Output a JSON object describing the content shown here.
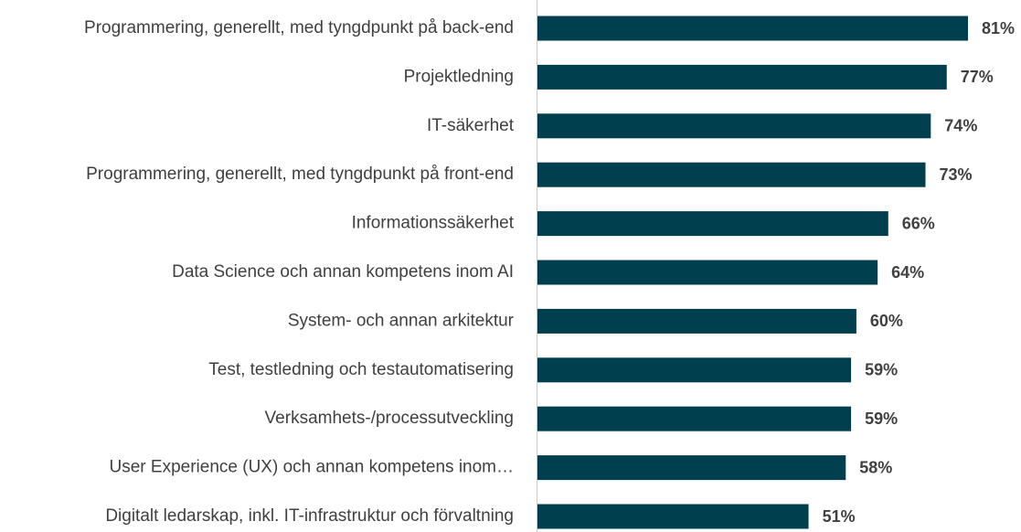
{
  "chart_data": {
    "type": "bar",
    "orientation": "horizontal",
    "categories": [
      "Programmering, generellt, med tyngdpunkt på back-end",
      "Projektledning",
      "IT-säkerhet",
      "Programmering, generellt, med tyngdpunkt på front-end",
      "Informationssäkerhet",
      "Data Science och annan kompetens inom AI",
      "System- och annan arkitektur",
      "Test, testledning och testautomatisering",
      "Verksamhets-/processutveckling",
      "User Experience (UX) och annan kompetens inom…",
      "Digitalt ledarskap, inkl. IT-infrastruktur och förvaltning"
    ],
    "values": [
      81,
      77,
      74,
      73,
      66,
      64,
      60,
      59,
      59,
      58,
      51
    ],
    "value_labels": [
      "81%",
      "77%",
      "74%",
      "73%",
      "66%",
      "64%",
      "60%",
      "59%",
      "59%",
      "58%",
      "51%"
    ],
    "color": "#00404e"
  }
}
